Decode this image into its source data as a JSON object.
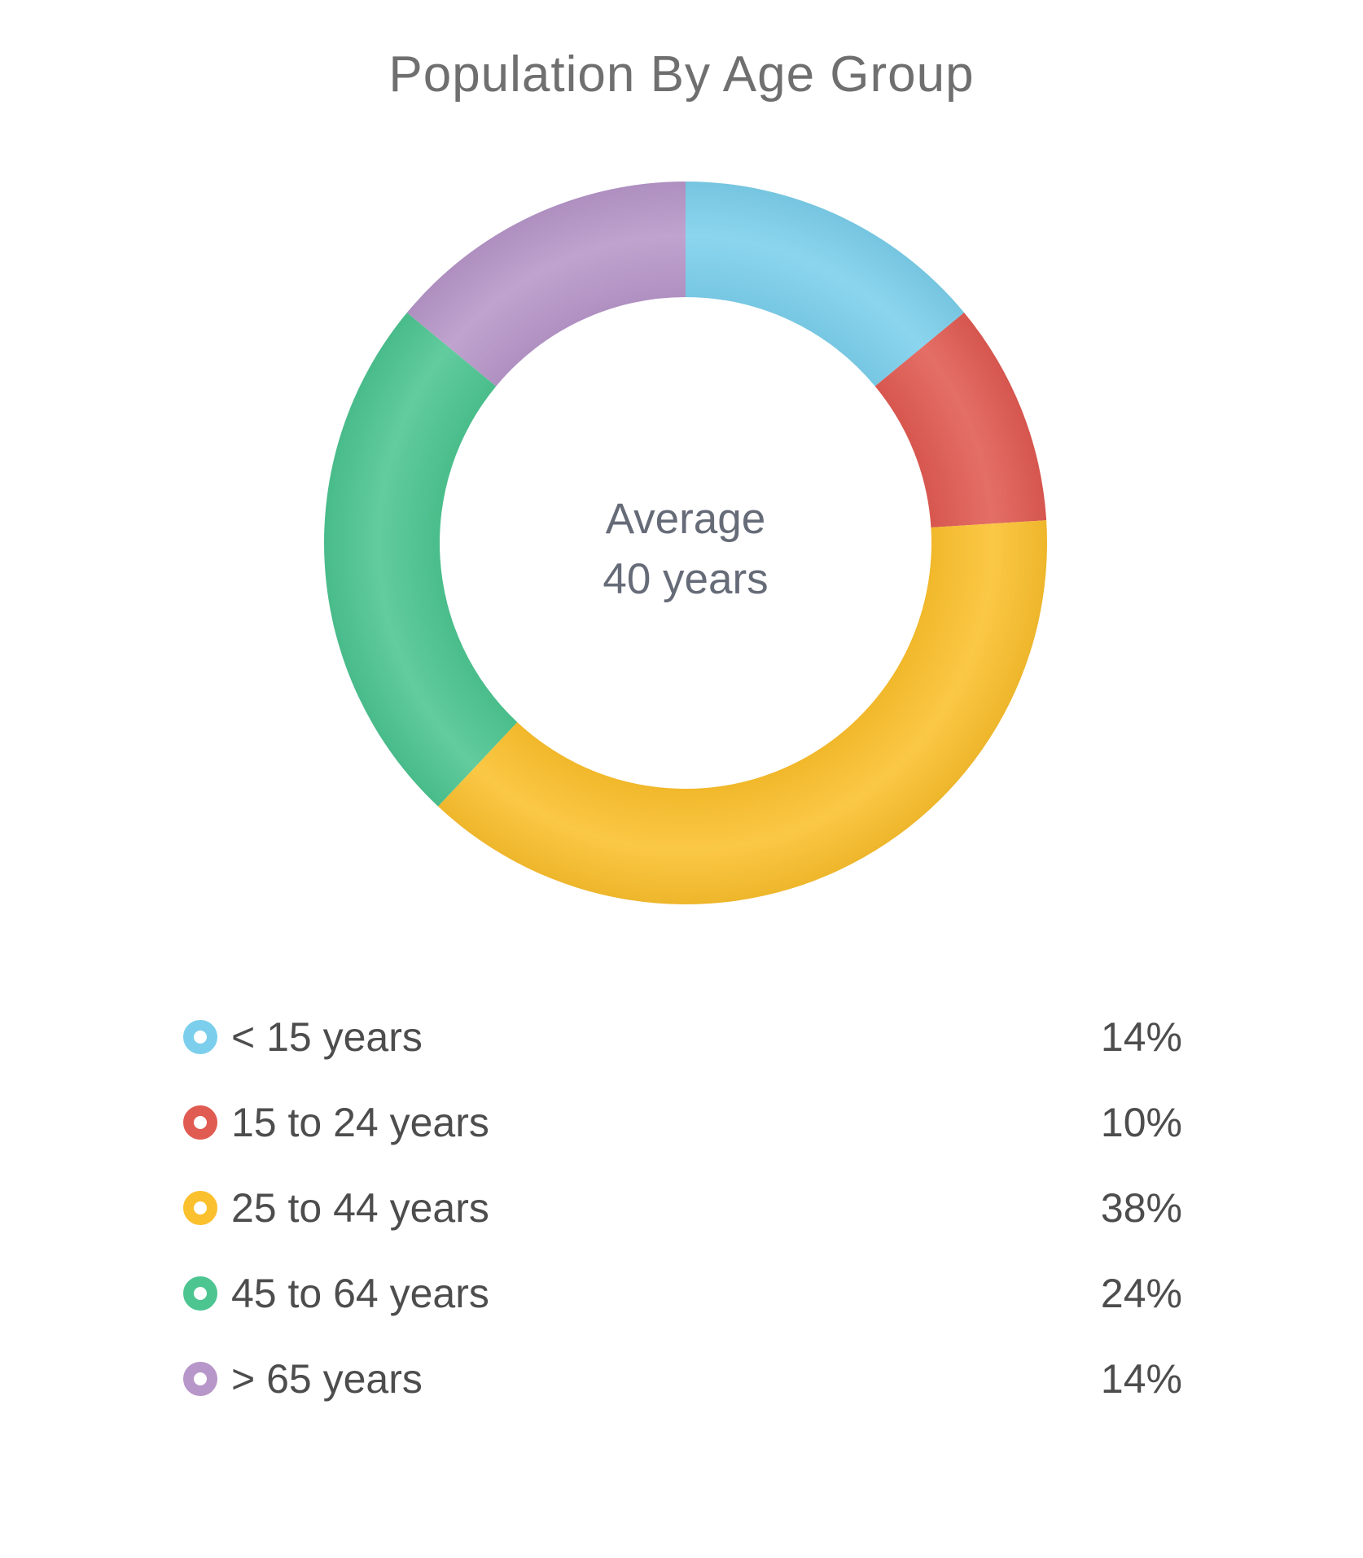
{
  "title": "Population By Age Group",
  "center_label": {
    "line1": "Average",
    "line2": "40 years"
  },
  "chart_data": {
    "type": "pie",
    "subtype": "donut",
    "title": "Population By Age Group",
    "center_text": [
      "Average",
      "40 years"
    ],
    "categories": [
      "< 15 years",
      "15 to 24 years",
      "25 to 44 years",
      "45 to 64 years",
      "> 65 years"
    ],
    "values": [
      14,
      10,
      38,
      24,
      14
    ],
    "unit": "%",
    "colors": [
      "#7ccfec",
      "#e05b52",
      "#fbc02d",
      "#4dc591",
      "#b796c9"
    ],
    "start_angle": "top",
    "direction": "clockwise",
    "inner_radius_ratio": 0.68,
    "legend_position": "bottom-left, values right-aligned"
  },
  "legend": {
    "items": [
      {
        "label": "< 15 years",
        "value_text": "14%",
        "color": "#7ccfec"
      },
      {
        "label": "15 to 24 years",
        "value_text": "10%",
        "color": "#e05b52"
      },
      {
        "label": "25 to 44 years",
        "value_text": "38%",
        "color": "#fbc02d"
      },
      {
        "label": "45 to 64 years",
        "value_text": "24%",
        "color": "#4dc591"
      },
      {
        "label": "> 65 years",
        "value_text": "14%",
        "color": "#b796c9"
      }
    ]
  }
}
